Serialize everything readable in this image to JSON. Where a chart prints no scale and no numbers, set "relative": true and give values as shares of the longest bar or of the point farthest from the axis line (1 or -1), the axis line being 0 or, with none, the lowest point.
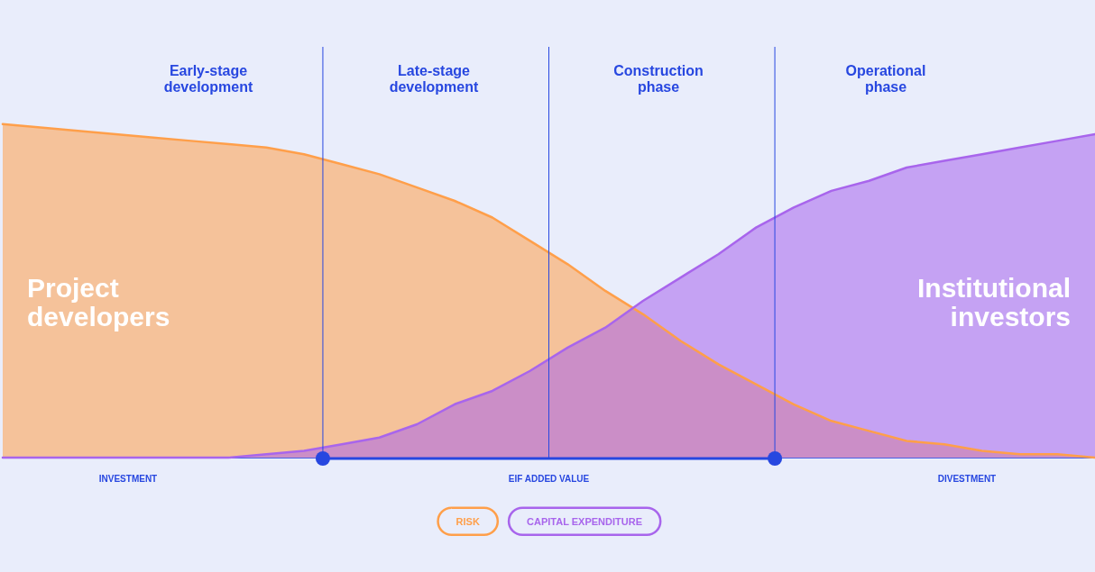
{
  "chart_data": {
    "type": "area",
    "relative": true,
    "categories": [
      null,
      null,
      null,
      null,
      null,
      null,
      null,
      null,
      null,
      null,
      null,
      null,
      null,
      null,
      null,
      null,
      null,
      null,
      null,
      null,
      null,
      null,
      null,
      null,
      null,
      null,
      null,
      null,
      null,
      null
    ],
    "series": [
      {
        "name": "RISK",
        "color": "#ff9f4a",
        "values": [
          1,
          0.99,
          0.98,
          0.97,
          0.96,
          0.95,
          0.94,
          0.93,
          0.91,
          0.88,
          0.85,
          0.81,
          0.77,
          0.72,
          0.65,
          0.58,
          0.5,
          0.43,
          0.35,
          0.28,
          0.22,
          0.16,
          0.11,
          0.08,
          0.05,
          0.04,
          0.02,
          0.01,
          0.01,
          0
        ]
      },
      {
        "name": "CAPITAL EXPENDITURE",
        "color": "#a865ec",
        "values": [
          0,
          0,
          0,
          0,
          0,
          0,
          0,
          0.01,
          0.02,
          0.04,
          0.06,
          0.1,
          0.16,
          0.2,
          0.26,
          0.33,
          0.39,
          0.47,
          0.54,
          0.61,
          0.69,
          0.75,
          0.8,
          0.83,
          0.87,
          0.89,
          0.91,
          0.93,
          0.95,
          0.97
        ]
      }
    ],
    "annotations": [
      "Early-stage development",
      "Late-stage development",
      "Construction phase",
      "Operational phase",
      "Project developers",
      "Institutional investors",
      "INVESTMENT",
      "EIF ADDED VALUE",
      "DIVESTMENT"
    ],
    "legend": "bottom",
    "grid": false,
    "marker": "none",
    "line_style": "solid",
    "tick_labels": false
  }
}
